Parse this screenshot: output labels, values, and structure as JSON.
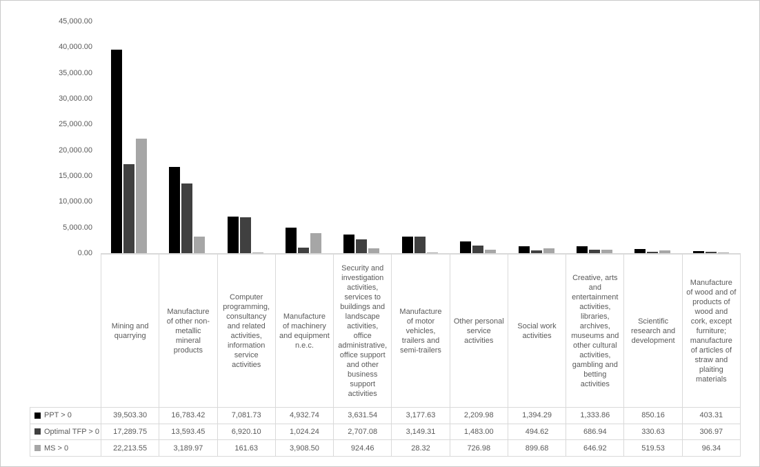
{
  "chart_data": {
    "type": "bar",
    "title": "",
    "xlabel": "",
    "ylabel": "",
    "grid": false,
    "legend_position": "table-left",
    "y_axis": {
      "min": 0,
      "max": 45000,
      "step": 5000,
      "tick_labels": [
        "0.00",
        "5,000.00",
        "10,000.00",
        "15,000.00",
        "20,000.00",
        "25,000.00",
        "30,000.00",
        "35,000.00",
        "40,000.00",
        "45,000.00"
      ]
    },
    "categories": [
      "Mining and quarrying",
      "Manufacture of other non-metallic mineral products",
      "Computer programming, consultancy and related activities, information service activities",
      "Manufacture of machinery and equipment n.e.c.",
      "Security and investigation activities, services to buildings and landscape activities, office administrative, office support and other business support activities",
      "Manufacture of motor vehicles, trailers and semi-trailers",
      "Other personal service activities",
      "Social work activities",
      "Creative, arts and entertainment activities, libraries, archives, museums and other cultural activities, gambling and betting activities",
      "Scientific research and development",
      "Manufacture of wood and of products of wood and cork, except furniture; manufacture of articles of straw and plaiting materials"
    ],
    "series": [
      {
        "name": "PPT > 0",
        "color": "#000000",
        "values": [
          39503.3,
          16783.42,
          7081.73,
          4932.74,
          3631.54,
          3177.63,
          2209.98,
          1394.29,
          1333.86,
          850.16,
          403.31
        ],
        "labels": [
          "39,503.30",
          "16,783.42",
          "7,081.73",
          "4,932.74",
          "3,631.54",
          "3,177.63",
          "2,209.98",
          "1,394.29",
          "1,333.86",
          "850.16",
          "403.31"
        ]
      },
      {
        "name": "Optimal TFP > 0",
        "color": "#404040",
        "values": [
          17289.75,
          13593.45,
          6920.1,
          1024.24,
          2707.08,
          3149.31,
          1483.0,
          494.62,
          686.94,
          330.63,
          306.97
        ],
        "labels": [
          "17,289.75",
          "13,593.45",
          "6,920.10",
          "1,024.24",
          "2,707.08",
          "3,149.31",
          "1,483.00",
          "494.62",
          "686.94",
          "330.63",
          "306.97"
        ]
      },
      {
        "name": "MS > 0",
        "color": "#a6a6a6",
        "values": [
          22213.55,
          3189.97,
          161.63,
          3908.5,
          924.46,
          28.32,
          726.98,
          899.68,
          646.92,
          519.53,
          96.34
        ],
        "labels": [
          "22,213.55",
          "3,189.97",
          "161.63",
          "3,908.50",
          "924.46",
          "28.32",
          "726.98",
          "899.68",
          "646.92",
          "519.53",
          "96.34"
        ]
      }
    ]
  },
  "colors": {
    "axis_line": "#d9d9d9",
    "grid_border": "#d9d9d9",
    "text": "#595959",
    "background": "#ffffff"
  }
}
